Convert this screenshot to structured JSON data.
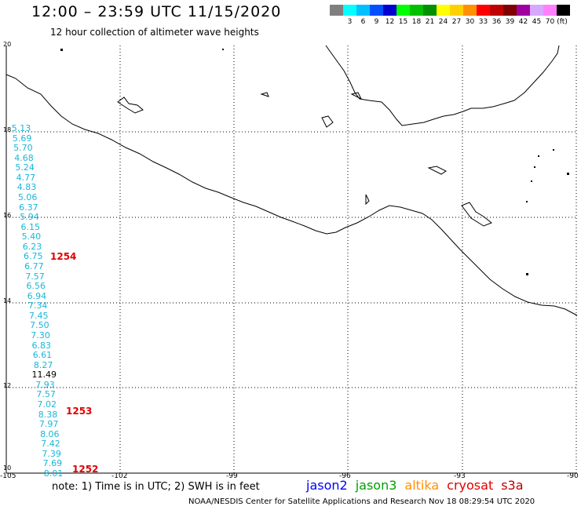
{
  "header": {
    "title": "12:00 – 23:59 UTC 11/15/2020",
    "subtitle": "12 hour collection of altimeter wave heights"
  },
  "color_scale": {
    "unit": "(ft)",
    "items": [
      {
        "label": "",
        "color": "#7f7f7f"
      },
      {
        "label": "3",
        "color": "#00ffff"
      },
      {
        "label": "6",
        "color": "#00c0ff"
      },
      {
        "label": "9",
        "color": "#0050ff"
      },
      {
        "label": "12",
        "color": "#0000d0"
      },
      {
        "label": "15",
        "color": "#00ff00"
      },
      {
        "label": "18",
        "color": "#00c000"
      },
      {
        "label": "21",
        "color": "#009000"
      },
      {
        "label": "24",
        "color": "#ffff00"
      },
      {
        "label": "27",
        "color": "#ffd000"
      },
      {
        "label": "30",
        "color": "#ff9000"
      },
      {
        "label": "33",
        "color": "#ff0000"
      },
      {
        "label": "36",
        "color": "#c00000"
      },
      {
        "label": "39",
        "color": "#800000"
      },
      {
        "label": "42",
        "color": "#a000a0"
      },
      {
        "label": "45",
        "color": "#d8a8ff"
      },
      {
        "label": "70",
        "color": "#ff80ff"
      },
      {
        "label": "",
        "color": "#000000"
      }
    ]
  },
  "axes": {
    "lat_labels": [
      "20",
      "18",
      "16",
      "14",
      "12",
      "10"
    ],
    "lon_labels": [
      "-105",
      "-102",
      "-99",
      "-96",
      "-93",
      "-90"
    ]
  },
  "track_values": [
    {
      "value": "5.13",
      "color": "cyan"
    },
    {
      "value": "5.69",
      "color": "cyan"
    },
    {
      "value": "5.70",
      "color": "cyan"
    },
    {
      "value": "4.68",
      "color": "cyan"
    },
    {
      "value": "5.24",
      "color": "cyan"
    },
    {
      "value": "4.77",
      "color": "cyan"
    },
    {
      "value": "4.83",
      "color": "cyan"
    },
    {
      "value": "5.06",
      "color": "cyan"
    },
    {
      "value": "6.37",
      "color": "cyan"
    },
    {
      "value": "5.94",
      "color": "cyan"
    },
    {
      "value": "6.15",
      "color": "cyan"
    },
    {
      "value": "5.40",
      "color": "cyan"
    },
    {
      "value": "6.23",
      "color": "cyan"
    },
    {
      "value": "6.75",
      "color": "cyan"
    },
    {
      "value": "6.77",
      "color": "cyan"
    },
    {
      "value": "7.57",
      "color": "cyan"
    },
    {
      "value": "6.56",
      "color": "cyan"
    },
    {
      "value": "6.94",
      "color": "cyan"
    },
    {
      "value": "7.34",
      "color": "cyan"
    },
    {
      "value": "7.45",
      "color": "cyan"
    },
    {
      "value": "7.50",
      "color": "cyan"
    },
    {
      "value": "7.30",
      "color": "cyan"
    },
    {
      "value": "6.83",
      "color": "cyan"
    },
    {
      "value": "6.61",
      "color": "cyan"
    },
    {
      "value": "8.27",
      "color": "cyan"
    },
    {
      "value": "11.49",
      "color": "black"
    },
    {
      "value": "7.93",
      "color": "cyan"
    },
    {
      "value": "7.57",
      "color": "cyan"
    },
    {
      "value": "7.02",
      "color": "cyan"
    },
    {
      "value": "8.38",
      "color": "cyan"
    },
    {
      "value": "7.97",
      "color": "cyan"
    },
    {
      "value": "8.06",
      "color": "cyan"
    },
    {
      "value": "7.42",
      "color": "cyan"
    },
    {
      "value": "7.39",
      "color": "cyan"
    },
    {
      "value": "7.69",
      "color": "cyan"
    },
    {
      "value": "8.01",
      "color": "cyan"
    }
  ],
  "pass_times": [
    "1254",
    "1253",
    "1252"
  ],
  "footer": {
    "note": "note:  1) Time is in UTC;  2) SWH is in feet",
    "credit": "NOAA/NESDIS Center for Satellite Applications and Research     Nov 18 08:29:54 UTC 2020"
  },
  "satellites": [
    {
      "name": "jason2",
      "color": "#0000ff"
    },
    {
      "name": "jason3",
      "color": "#00a000"
    },
    {
      "name": "altika",
      "color": "#ff9000"
    },
    {
      "name": "cryosat",
      "color": "#e00000"
    },
    {
      "name": "s3a",
      "color": "#c00000"
    }
  ]
}
